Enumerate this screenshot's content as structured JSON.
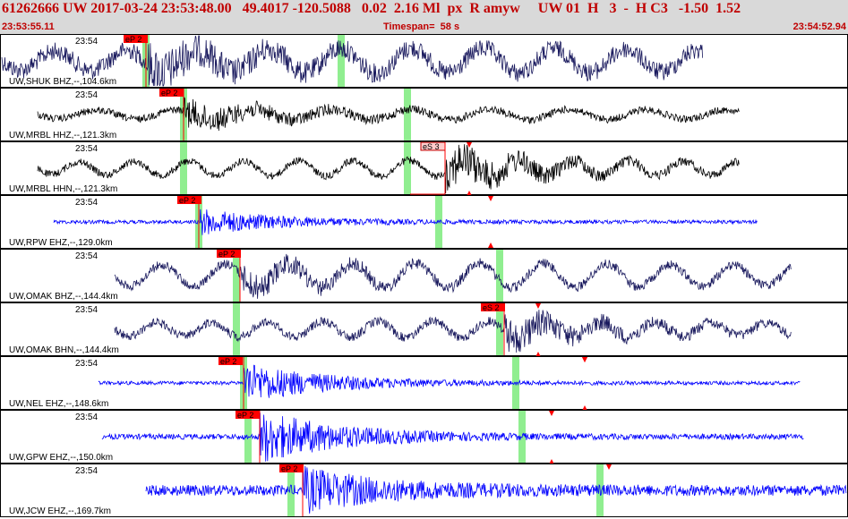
{
  "header": {
    "title": "61262666 UW 2017-03-24 23:53:48.00   49.4017 -120.5088   0.02  2.16 Ml  px  R amyw     UW 01  H   3  -  H C3   -1.50  1.52",
    "start_time": "23:53:55.11",
    "timespan": "Timespan=  58 s",
    "end_time": "23:54:52.94"
  },
  "colors": {
    "header_bg": "#d9d9d9",
    "header_text": "#c00000",
    "pick_red": "#ff0000",
    "green_bar": "#90ee90"
  },
  "traces": [
    {
      "label": "UW,SHUK BHZ,--,104.6km",
      "time": "23:54",
      "color": "#1a1a5e",
      "picks": [
        {
          "label": "eP 2"
        }
      ]
    },
    {
      "label": "UW,MRBL HHZ,--,121.3km",
      "time": "23:54",
      "color": "#000000",
      "picks": [
        {
          "label": "eP 2"
        }
      ]
    },
    {
      "label": "UW,MRBL HHN,--,121.3km",
      "time": "23:54",
      "color": "#000000",
      "picks": [
        {
          "label": "eS 3"
        }
      ]
    },
    {
      "label": "UW,RPW EHZ,--,129.0km",
      "time": "23:54",
      "color": "#0000ff",
      "picks": [
        {
          "label": "eP 2"
        }
      ]
    },
    {
      "label": "UW,OMAK BHZ,--,144.4km",
      "time": "23:54",
      "color": "#1a1a5e",
      "picks": [
        {
          "label": "eP 2"
        }
      ]
    },
    {
      "label": "UW,OMAK BHN,--,144.4km",
      "time": "23:54",
      "color": "#1a1a5e",
      "picks": [
        {
          "label": "eS 2"
        }
      ]
    },
    {
      "label": "UW,NEL EHZ,--,148.6km",
      "time": "23:54",
      "color": "#0000ff",
      "picks": [
        {
          "label": "eP 2"
        }
      ]
    },
    {
      "label": "UW,GPW EHZ,--,150.0km",
      "time": "23:54",
      "color": "#0000ff",
      "picks": [
        {
          "label": "eP 2"
        }
      ]
    },
    {
      "label": "UW,JCW EHZ,--,169.7km",
      "time": "23:54",
      "color": "#0000ff",
      "picks": [
        {
          "label": "eP 2"
        }
      ]
    }
  ]
}
